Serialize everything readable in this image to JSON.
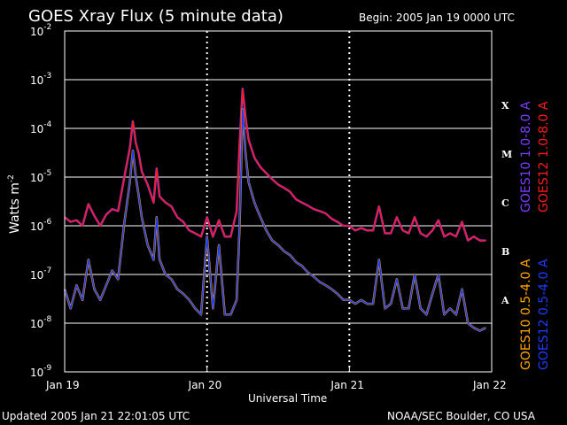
{
  "header": {
    "title": "GOES Xray Flux (5 minute data)",
    "begin": "Begin:  2005 Jan 19 0000 UTC"
  },
  "footer": {
    "updated": "Updated 2005 Jan 21 22:01:05 UTC",
    "credit": "NOAA/SEC Boulder, CO USA"
  },
  "colors": {
    "background": "#000000",
    "axes": "#ffffff",
    "grid": "#ffffff",
    "goes10_long": "#7a3cff",
    "goes12_long": "#ff1a1a",
    "goes10_short": "#ffa500",
    "goes12_short": "#1a3cff"
  },
  "chart_data": {
    "type": "line",
    "xlabel": "Universal Time",
    "ylabel_base": "Watts m",
    "ylabel_exp": "-2",
    "y_scale": "log",
    "ylim": [
      1e-09,
      0.01
    ],
    "xlim_hours": [
      0,
      72
    ],
    "x_tick_labels": [
      {
        "hour": 0,
        "label": "Jan 19"
      },
      {
        "hour": 24,
        "label": "Jan 20"
      },
      {
        "hour": 48,
        "label": "Jan 21"
      },
      {
        "hour": 72,
        "label": "Jan 22"
      }
    ],
    "y_tick_labels": [
      {
        "value": 0.01,
        "base": "10",
        "exp": "-2"
      },
      {
        "value": 0.001,
        "base": "10",
        "exp": "-3"
      },
      {
        "value": 0.0001,
        "base": "10",
        "exp": "-4"
      },
      {
        "value": 1e-05,
        "base": "10",
        "exp": "-5"
      },
      {
        "value": 1e-06,
        "base": "10",
        "exp": "-6"
      },
      {
        "value": 1e-07,
        "base": "10",
        "exp": "-7"
      },
      {
        "value": 1e-08,
        "base": "10",
        "exp": "-8"
      },
      {
        "value": 1e-09,
        "base": "10",
        "exp": "-9"
      }
    ],
    "flare_classes": [
      {
        "label": "X",
        "value": 0.0003
      },
      {
        "label": "M",
        "value": 3e-05
      },
      {
        "label": "C",
        "value": 3e-06
      },
      {
        "label": "B",
        "value": 3e-07
      },
      {
        "label": "A",
        "value": 3e-08
      }
    ],
    "grid": {
      "horizontal": true,
      "vertical_dotted_days": true
    },
    "legend_right": [
      {
        "text": "GOES10 1.0-8.0 A",
        "color_key": "goes10_long"
      },
      {
        "text": "GOES12 1.0-8.0 A",
        "color_key": "goes12_long"
      },
      {
        "text": "GOES10 0.5-4.0 A",
        "color_key": "goes10_short"
      },
      {
        "text": "GOES12 0.5-4.0 A",
        "color_key": "goes12_short"
      }
    ],
    "series": [
      {
        "legend_index": 1,
        "color_key": "goes12_long",
        "x": [
          0,
          1,
          2,
          3,
          4,
          5,
          6,
          7,
          8,
          9,
          10,
          11,
          11.5,
          12,
          12.5,
          13,
          14,
          15,
          15.5,
          16,
          17,
          18,
          19,
          20,
          21,
          22,
          23,
          24,
          25,
          26,
          27,
          28,
          29,
          29.5,
          30,
          30.5,
          31,
          32,
          33,
          34,
          35,
          36,
          37,
          38,
          39,
          40,
          41,
          42,
          43,
          44,
          45,
          46,
          47,
          48,
          49,
          50,
          51,
          52,
          53,
          54,
          55,
          56,
          57,
          58,
          59,
          60,
          61,
          62,
          63,
          64,
          65,
          66,
          67,
          68,
          69,
          70,
          71
        ],
        "y": [
          1.5e-06,
          1.2e-06,
          1.3e-06,
          1e-06,
          2.8e-06,
          1.6e-06,
          1e-06,
          1.7e-06,
          2.2e-06,
          2e-06,
          9e-06,
          4e-05,
          0.00014,
          5e-05,
          3e-05,
          1.3e-05,
          7e-06,
          3e-06,
          1.5e-05,
          4e-06,
          3e-06,
          2.5e-06,
          1.5e-06,
          1.2e-06,
          8e-07,
          7e-07,
          6e-07,
          1.5e-06,
          6e-07,
          1.3e-06,
          6e-07,
          6e-07,
          2e-06,
          5e-05,
          0.00065,
          0.00017,
          6e-05,
          2.5e-05,
          1.6e-05,
          1.2e-05,
          9e-06,
          7e-06,
          6e-06,
          5e-06,
          3.5e-06,
          3e-06,
          2.6e-06,
          2.2e-06,
          2e-06,
          1.8e-06,
          1.4e-06,
          1.2e-06,
          1e-06,
          1e-06,
          8e-07,
          9e-07,
          8e-07,
          8e-07,
          2.5e-06,
          7e-07,
          7e-07,
          1.5e-06,
          8e-07,
          7e-07,
          1.5e-06,
          7e-07,
          6e-07,
          8e-07,
          1.3e-06,
          6e-07,
          7e-07,
          6e-07,
          1.2e-06,
          5e-07,
          6e-07,
          5e-07,
          5e-07
        ]
      },
      {
        "legend_index": 3,
        "color_key": "goes12_short",
        "x": [
          0,
          1,
          2,
          3,
          4,
          5,
          6,
          7,
          8,
          9,
          10,
          11,
          11.5,
          12,
          12.5,
          13,
          14,
          15,
          15.5,
          16,
          17,
          18,
          19,
          20,
          21,
          22,
          23,
          24,
          25,
          26,
          27,
          28,
          29,
          29.5,
          30,
          30.5,
          31,
          32,
          33,
          34,
          35,
          36,
          37,
          38,
          39,
          40,
          41,
          42,
          43,
          44,
          45,
          46,
          47,
          48,
          49,
          50,
          51,
          52,
          53,
          54,
          55,
          56,
          57,
          58,
          59,
          60,
          61,
          62,
          63,
          64,
          65,
          66,
          67,
          68,
          69,
          70,
          71
        ],
        "y": [
          5e-08,
          2e-08,
          6e-08,
          3e-08,
          2e-07,
          5e-08,
          3e-08,
          6e-08,
          1.2e-07,
          8e-08,
          1e-06,
          8e-06,
          3.5e-05,
          1e-05,
          4e-06,
          1.5e-06,
          4e-07,
          2e-07,
          1.5e-06,
          2e-07,
          1e-07,
          8e-08,
          5e-08,
          4e-08,
          3e-08,
          2e-08,
          1.5e-08,
          6e-07,
          2e-08,
          4e-07,
          1.5e-08,
          1.5e-08,
          3e-08,
          1e-06,
          0.00025,
          3e-05,
          8e-06,
          3e-06,
          1.5e-06,
          8e-07,
          5e-07,
          4e-07,
          3e-07,
          2.5e-07,
          1.8e-07,
          1.5e-07,
          1.1e-07,
          9e-08,
          7e-08,
          6e-08,
          5e-08,
          4e-08,
          3e-08,
          3e-08,
          2.5e-08,
          3e-08,
          2.5e-08,
          2.5e-08,
          2e-07,
          2e-08,
          2.5e-08,
          8e-08,
          2e-08,
          2e-08,
          1e-07,
          2e-08,
          1.5e-08,
          4e-08,
          1e-07,
          1.5e-08,
          2e-08,
          1.5e-08,
          5e-08,
          1e-08,
          8e-09,
          7e-09,
          8e-09
        ]
      }
    ]
  }
}
